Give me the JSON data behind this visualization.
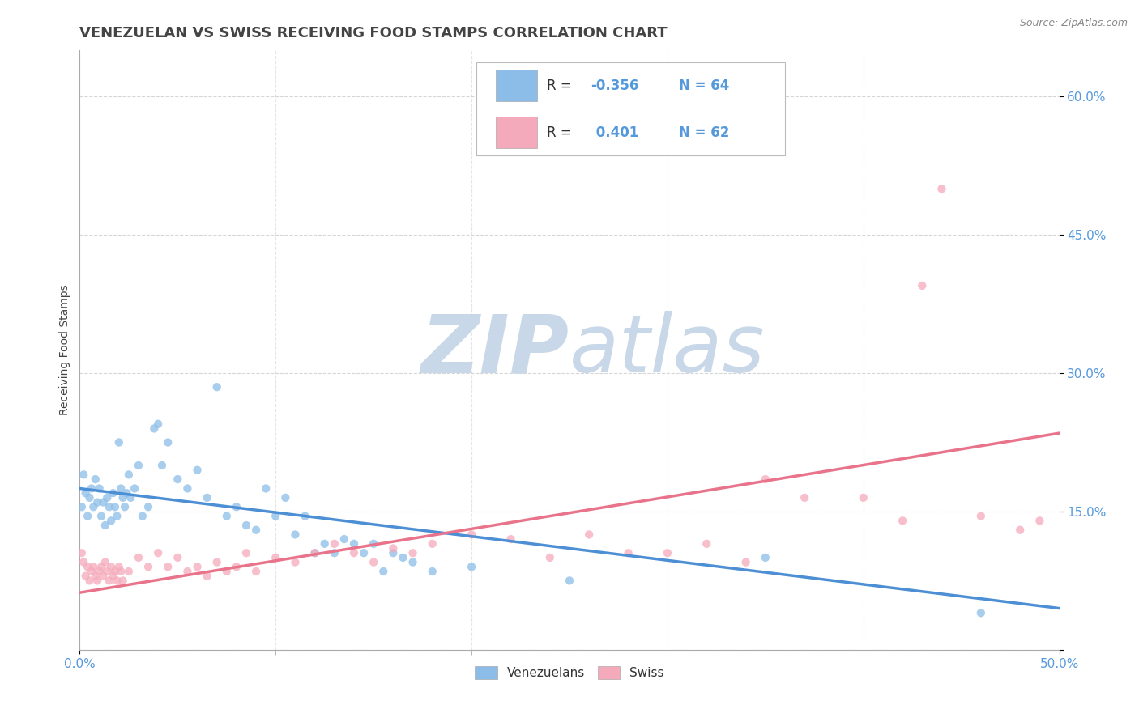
{
  "title": "VENEZUELAN VS SWISS RECEIVING FOOD STAMPS CORRELATION CHART",
  "source": "Source: ZipAtlas.com",
  "ylabel": "Receiving Food Stamps",
  "watermark": "ZIPatlas",
  "venezuelan_points": [
    [
      0.001,
      0.155
    ],
    [
      0.002,
      0.19
    ],
    [
      0.003,
      0.17
    ],
    [
      0.004,
      0.145
    ],
    [
      0.005,
      0.165
    ],
    [
      0.006,
      0.175
    ],
    [
      0.007,
      0.155
    ],
    [
      0.008,
      0.185
    ],
    [
      0.009,
      0.16
    ],
    [
      0.01,
      0.175
    ],
    [
      0.011,
      0.145
    ],
    [
      0.012,
      0.16
    ],
    [
      0.013,
      0.135
    ],
    [
      0.014,
      0.165
    ],
    [
      0.015,
      0.155
    ],
    [
      0.016,
      0.14
    ],
    [
      0.017,
      0.17
    ],
    [
      0.018,
      0.155
    ],
    [
      0.019,
      0.145
    ],
    [
      0.02,
      0.225
    ],
    [
      0.021,
      0.175
    ],
    [
      0.022,
      0.165
    ],
    [
      0.023,
      0.155
    ],
    [
      0.024,
      0.17
    ],
    [
      0.025,
      0.19
    ],
    [
      0.026,
      0.165
    ],
    [
      0.028,
      0.175
    ],
    [
      0.03,
      0.2
    ],
    [
      0.032,
      0.145
    ],
    [
      0.035,
      0.155
    ],
    [
      0.038,
      0.24
    ],
    [
      0.04,
      0.245
    ],
    [
      0.042,
      0.2
    ],
    [
      0.045,
      0.225
    ],
    [
      0.05,
      0.185
    ],
    [
      0.055,
      0.175
    ],
    [
      0.06,
      0.195
    ],
    [
      0.065,
      0.165
    ],
    [
      0.07,
      0.285
    ],
    [
      0.075,
      0.145
    ],
    [
      0.08,
      0.155
    ],
    [
      0.085,
      0.135
    ],
    [
      0.09,
      0.13
    ],
    [
      0.095,
      0.175
    ],
    [
      0.1,
      0.145
    ],
    [
      0.105,
      0.165
    ],
    [
      0.11,
      0.125
    ],
    [
      0.115,
      0.145
    ],
    [
      0.12,
      0.105
    ],
    [
      0.125,
      0.115
    ],
    [
      0.13,
      0.105
    ],
    [
      0.135,
      0.12
    ],
    [
      0.14,
      0.115
    ],
    [
      0.145,
      0.105
    ],
    [
      0.15,
      0.115
    ],
    [
      0.155,
      0.085
    ],
    [
      0.16,
      0.105
    ],
    [
      0.165,
      0.1
    ],
    [
      0.17,
      0.095
    ],
    [
      0.18,
      0.085
    ],
    [
      0.2,
      0.09
    ],
    [
      0.25,
      0.075
    ],
    [
      0.35,
      0.1
    ],
    [
      0.46,
      0.04
    ]
  ],
  "swiss_points": [
    [
      0.001,
      0.105
    ],
    [
      0.002,
      0.095
    ],
    [
      0.003,
      0.08
    ],
    [
      0.004,
      0.09
    ],
    [
      0.005,
      0.075
    ],
    [
      0.006,
      0.085
    ],
    [
      0.007,
      0.09
    ],
    [
      0.008,
      0.08
    ],
    [
      0.009,
      0.075
    ],
    [
      0.01,
      0.085
    ],
    [
      0.011,
      0.09
    ],
    [
      0.012,
      0.08
    ],
    [
      0.013,
      0.095
    ],
    [
      0.014,
      0.085
    ],
    [
      0.015,
      0.075
    ],
    [
      0.016,
      0.09
    ],
    [
      0.017,
      0.08
    ],
    [
      0.018,
      0.085
    ],
    [
      0.019,
      0.075
    ],
    [
      0.02,
      0.09
    ],
    [
      0.021,
      0.085
    ],
    [
      0.022,
      0.075
    ],
    [
      0.025,
      0.085
    ],
    [
      0.03,
      0.1
    ],
    [
      0.035,
      0.09
    ],
    [
      0.04,
      0.105
    ],
    [
      0.045,
      0.09
    ],
    [
      0.05,
      0.1
    ],
    [
      0.055,
      0.085
    ],
    [
      0.06,
      0.09
    ],
    [
      0.065,
      0.08
    ],
    [
      0.07,
      0.095
    ],
    [
      0.075,
      0.085
    ],
    [
      0.08,
      0.09
    ],
    [
      0.085,
      0.105
    ],
    [
      0.09,
      0.085
    ],
    [
      0.1,
      0.1
    ],
    [
      0.11,
      0.095
    ],
    [
      0.12,
      0.105
    ],
    [
      0.13,
      0.115
    ],
    [
      0.14,
      0.105
    ],
    [
      0.15,
      0.095
    ],
    [
      0.16,
      0.11
    ],
    [
      0.17,
      0.105
    ],
    [
      0.18,
      0.115
    ],
    [
      0.2,
      0.125
    ],
    [
      0.22,
      0.12
    ],
    [
      0.24,
      0.1
    ],
    [
      0.26,
      0.125
    ],
    [
      0.28,
      0.105
    ],
    [
      0.3,
      0.105
    ],
    [
      0.32,
      0.115
    ],
    [
      0.34,
      0.095
    ],
    [
      0.35,
      0.185
    ],
    [
      0.37,
      0.165
    ],
    [
      0.4,
      0.165
    ],
    [
      0.42,
      0.14
    ],
    [
      0.43,
      0.395
    ],
    [
      0.44,
      0.5
    ],
    [
      0.46,
      0.145
    ],
    [
      0.48,
      0.13
    ],
    [
      0.49,
      0.14
    ]
  ],
  "blue_line": {
    "x0": 0.0,
    "y0": 0.175,
    "x1": 0.5,
    "y1": 0.045
  },
  "pink_line": {
    "x0": 0.0,
    "y0": 0.062,
    "x1": 0.5,
    "y1": 0.235
  },
  "xlim": [
    0.0,
    0.5
  ],
  "ylim": [
    0.0,
    0.65
  ],
  "yticks": [
    0.0,
    0.15,
    0.3,
    0.45,
    0.6
  ],
  "ytick_labels": [
    "",
    "15.0%",
    "30.0%",
    "45.0%",
    "60.0%"
  ],
  "title_fontsize": 13,
  "axis_label_fontsize": 10,
  "tick_fontsize": 11,
  "dot_size": 55,
  "dot_alpha": 0.75,
  "background_color": "#ffffff",
  "grid_color": "#cccccc",
  "title_color": "#444444",
  "blue_color": "#8bbde8",
  "pink_color": "#f5aabb",
  "blue_line_color": "#4d8fd4",
  "pink_line_color": "#e8738a",
  "watermark_color": "#c8d8e8",
  "source_color": "#888888",
  "tick_color": "#5599dd"
}
